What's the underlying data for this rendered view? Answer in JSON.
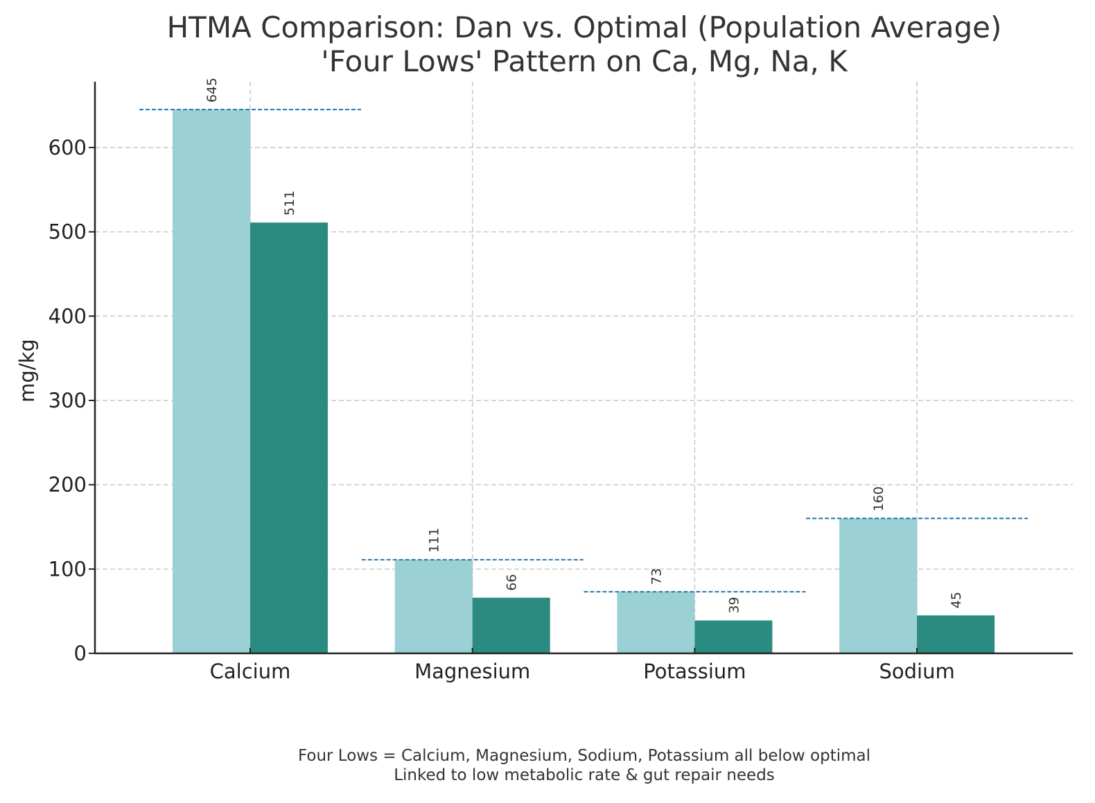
{
  "chart_data": {
    "type": "bar",
    "title": "HTMA Comparison: Dan vs. Optimal (Population Average)",
    "subtitle": "'Four Lows' Pattern on Ca, Mg, Na, K",
    "xlabel": "",
    "ylabel": "mg/kg",
    "ylim": [
      0,
      678
    ],
    "yticks": [
      0,
      100,
      200,
      300,
      400,
      500,
      600
    ],
    "grid": true,
    "legend": "none",
    "categories": [
      "Calcium",
      "Magnesium",
      "Potassium",
      "Sodium"
    ],
    "series": [
      {
        "name": "Optimal (Population Average)",
        "color": "#9bd1d4",
        "values": [
          645,
          111,
          73,
          160
        ]
      },
      {
        "name": "Dan",
        "color": "#2b8b81",
        "values": [
          511,
          66,
          39,
          45
        ]
      }
    ],
    "reference_lines": {
      "description": "Optimal level per mineral (dashed)",
      "color": "#1f77b4",
      "values": [
        645,
        111,
        73,
        160
      ]
    },
    "annotations": [
      "Four Lows = Calcium, Magnesium, Sodium, Potassium all below optimal",
      "Linked to low metabolic rate & gut repair needs"
    ]
  }
}
